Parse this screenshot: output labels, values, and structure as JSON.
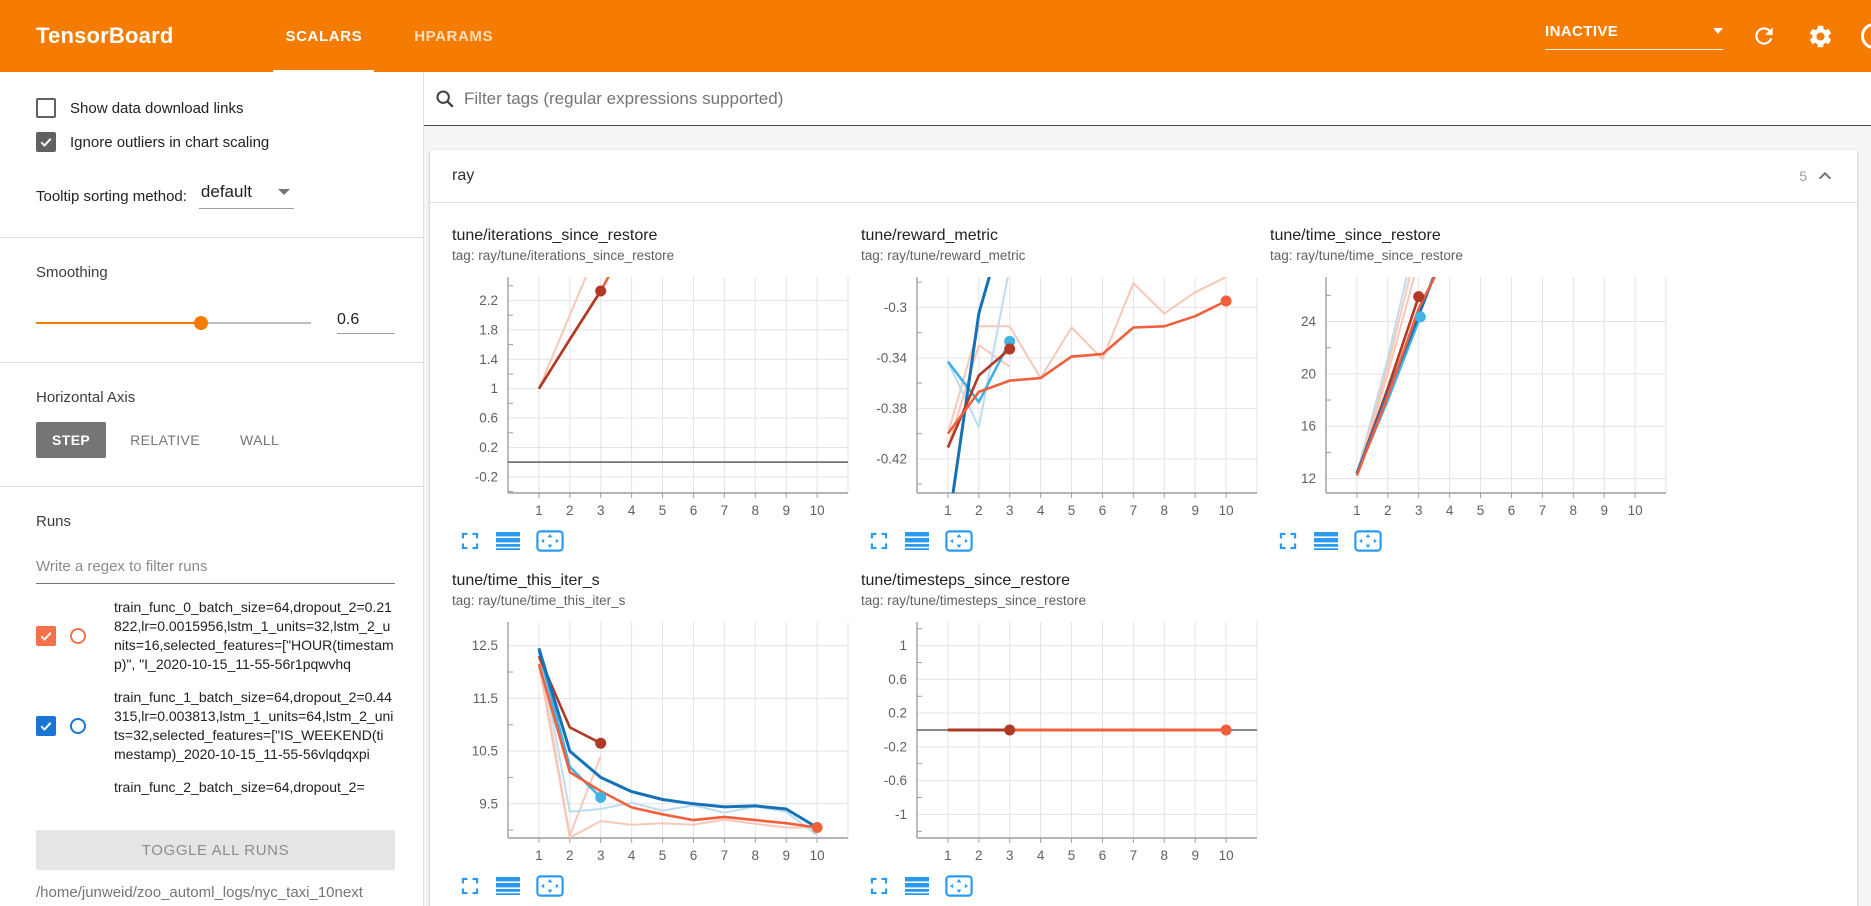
{
  "header": {
    "app_title": "TensorBoard",
    "tabs": [
      {
        "label": "SCALARS",
        "active": true
      },
      {
        "label": "HPARAMS",
        "active": false
      }
    ],
    "status_dropdown": {
      "value": "INACTIVE"
    },
    "accent_color": "#f57c00"
  },
  "sidebar": {
    "checkboxes": [
      {
        "label": "Show data download links",
        "checked": false
      },
      {
        "label": "Ignore outliers in chart scaling",
        "checked": true
      }
    ],
    "tooltip_sorting": {
      "label": "Tooltip sorting method:",
      "value": "default"
    },
    "smoothing": {
      "label": "Smoothing",
      "value": "0.6",
      "fraction": 0.6
    },
    "horizontal_axis": {
      "label": "Horizontal Axis",
      "options": [
        {
          "label": "STEP",
          "active": true
        },
        {
          "label": "RELATIVE",
          "active": false
        },
        {
          "label": "WALL",
          "active": false
        }
      ]
    },
    "runs": {
      "label": "Runs",
      "filter_placeholder": "Write a regex to filter runs",
      "items": [
        {
          "color": "#f4714a",
          "checked": true,
          "label": "train_func_0_batch_size=64,dropout_2=0.21822,lr=0.0015956,lstm_1_units=32,lstm_2_units=16,selected_features=[\"HOUR(timestamp)\", \"I_2020-10-15_11-55-56r1pqwvhq"
        },
        {
          "color": "#1976d2",
          "checked": true,
          "label": "train_func_1_batch_size=64,dropout_2=0.44315,lr=0.003813,lstm_1_units=64,lstm_2_units=32,selected_features=[\"IS_WEEKEND(timestamp)_2020-10-15_11-55-56vlqdqxpi"
        },
        {
          "color": "#b03a26",
          "checked": true,
          "label": "train_func_2_batch_size=64,dropout_2="
        }
      ],
      "toggle_all_label": "TOGGLE ALL RUNS",
      "log_path": "/home/junweid/zoo_automl_logs/nyc_taxi_10next"
    }
  },
  "main": {
    "filter_placeholder": "Filter tags (regular expressions supported)",
    "section": {
      "name": "ray",
      "count": "5"
    }
  },
  "chart_data": [
    {
      "type": "line",
      "title": "tune/iterations_since_restore",
      "tag": "tag: ray/tune/iterations_since_restore",
      "xticks": [
        1,
        2,
        3,
        4,
        5,
        6,
        7,
        8,
        9,
        10
      ],
      "xlim": [
        0,
        11
      ],
      "yticks": [
        -0.2,
        0.2,
        0.6,
        1,
        1.4,
        1.8,
        2.2
      ],
      "ylim": [
        -0.42,
        2.52
      ],
      "zero_line": true,
      "series": [
        {
          "name": "run0-raw",
          "color": "#f7c8b8",
          "width": 2,
          "points": [
            [
              1,
              1
            ],
            [
              2,
              2
            ],
            [
              3,
              3
            ]
          ]
        },
        {
          "name": "run0-smoothed",
          "color": "#f0603c",
          "width": 2.6,
          "points": [
            [
              1,
              1
            ],
            [
              2,
              1.67
            ],
            [
              3,
              2.33
            ],
            [
              4,
              3.1
            ]
          ]
        },
        {
          "name": "run2-smoothed",
          "color": "#b03a26",
          "width": 2.6,
          "points": [
            [
              1,
              1
            ],
            [
              2,
              1.67
            ],
            [
              3,
              2.33
            ]
          ],
          "dot": [
            3,
            2.33
          ]
        }
      ]
    },
    {
      "type": "line",
      "title": "tune/reward_metric",
      "tag": "tag: ray/tune/reward_metric",
      "xticks": [
        1,
        2,
        3,
        4,
        5,
        6,
        7,
        8,
        9,
        10
      ],
      "xlim": [
        0,
        11
      ],
      "yticks": [
        -0.3,
        -0.34,
        -0.38,
        -0.42
      ],
      "ylim": [
        -0.447,
        -0.276
      ],
      "zero_line": false,
      "series": [
        {
          "name": "run0-raw",
          "color": "#f7c8b8",
          "width": 2,
          "points": [
            [
              1,
              -0.4
            ],
            [
              2,
              -0.315
            ],
            [
              3,
              -0.315
            ],
            [
              4,
              -0.356
            ],
            [
              5,
              -0.316
            ],
            [
              6,
              -0.341
            ],
            [
              7,
              -0.281
            ],
            [
              8,
              -0.305
            ],
            [
              9,
              -0.288
            ],
            [
              10,
              -0.276
            ]
          ]
        },
        {
          "name": "run2-raw",
          "color": "#f7c8b8",
          "width": 2,
          "points": [
            [
              1,
              -0.411
            ],
            [
              2,
              -0.33
            ],
            [
              3,
              -0.347
            ]
          ]
        },
        {
          "name": "run1-raw",
          "color": "#bcdcf0",
          "width": 2,
          "points": [
            [
              1,
              -0.343
            ],
            [
              2,
              -0.395
            ],
            [
              3,
              -0.268
            ]
          ]
        },
        {
          "name": "run1-smoothed-light",
          "color": "#41b2e6",
          "width": 2.6,
          "points": [
            [
              1,
              -0.343
            ],
            [
              2,
              -0.375
            ],
            [
              3,
              -0.327
            ]
          ],
          "dot": [
            3,
            -0.327
          ]
        },
        {
          "name": "run1-smoothed-dark",
          "color": "#1572b6",
          "width": 3,
          "points": [
            [
              1.15,
              -0.45
            ],
            [
              2,
              -0.305
            ],
            [
              2.55,
              -0.258
            ]
          ]
        },
        {
          "name": "run2-smoothed",
          "color": "#b03a26",
          "width": 2.6,
          "points": [
            [
              1,
              -0.411
            ],
            [
              2,
              -0.354
            ],
            [
              3,
              -0.333
            ]
          ],
          "dot": [
            3,
            -0.333
          ]
        },
        {
          "name": "run0-smoothed",
          "color": "#f0603c",
          "width": 2.6,
          "points": [
            [
              1,
              -0.4
            ],
            [
              2,
              -0.367
            ],
            [
              3,
              -0.358
            ],
            [
              4,
              -0.356
            ],
            [
              5,
              -0.339
            ],
            [
              6,
              -0.337
            ],
            [
              7,
              -0.316
            ],
            [
              8,
              -0.315
            ],
            [
              9,
              -0.307
            ],
            [
              10,
              -0.295
            ]
          ],
          "dot": [
            10,
            -0.295
          ]
        }
      ]
    },
    {
      "type": "line",
      "title": "tune/time_since_restore",
      "tag": "tag: ray/tune/time_since_restore",
      "xticks": [
        1,
        2,
        3,
        4,
        5,
        6,
        7,
        8,
        9,
        10
      ],
      "xlim": [
        0,
        11
      ],
      "yticks": [
        12,
        16,
        20,
        24
      ],
      "ylim": [
        10.9,
        27.4
      ],
      "zero_line": false,
      "series": [
        {
          "name": "run1-raw",
          "color": "#bcdcf0",
          "width": 2,
          "points": [
            [
              1,
              12.4
            ],
            [
              2,
              21.2
            ],
            [
              2.65,
              27.8
            ]
          ]
        },
        {
          "name": "run0-raw",
          "color": "#f7c8b8",
          "width": 2,
          "points": [
            [
              1,
              12.2
            ],
            [
              2,
              20.6
            ],
            [
              2.75,
              27.8
            ]
          ]
        },
        {
          "name": "run2-raw",
          "color": "#f7c8b8",
          "width": 2,
          "points": [
            [
              1,
              12.2
            ],
            [
              2,
              20.0
            ],
            [
              2.9,
              27.8
            ]
          ]
        },
        {
          "name": "run1-smoothed-light",
          "color": "#41b2e6",
          "width": 2.6,
          "points": [
            [
              1,
              12.4
            ],
            [
              2,
              18.0
            ],
            [
              3.05,
              24.35
            ]
          ],
          "dot": [
            3.05,
            24.35
          ]
        },
        {
          "name": "run2-smoothed",
          "color": "#b03a26",
          "width": 2.6,
          "points": [
            [
              1,
              12.35
            ],
            [
              2,
              18.9
            ],
            [
              3,
              25.9
            ]
          ],
          "dot": [
            3,
            25.9
          ]
        },
        {
          "name": "run1-smoothed-dark",
          "color": "#1572b6",
          "width": 3,
          "points": [
            [
              1,
              12.4
            ],
            [
              2,
              18.5
            ],
            [
              3.55,
              27.8
            ]
          ]
        },
        {
          "name": "run0-smoothed",
          "color": "#f0603c",
          "width": 2.6,
          "points": [
            [
              1,
              12.25
            ],
            [
              2,
              18.3
            ],
            [
              3,
              25.0
            ],
            [
              3.6,
              27.8
            ]
          ]
        }
      ]
    },
    {
      "type": "line",
      "title": "tune/time_this_iter_s",
      "tag": "tag: ray/tune/time_this_iter_s",
      "xticks": [
        1,
        2,
        3,
        4,
        5,
        6,
        7,
        8,
        9,
        10
      ],
      "xlim": [
        0,
        11
      ],
      "yticks": [
        9.5,
        10.5,
        11.5,
        12.5
      ],
      "ylim": [
        8.85,
        12.95
      ],
      "zero_line": false,
      "series": [
        {
          "name": "run0-raw",
          "color": "#f7c8b8",
          "width": 2,
          "points": [
            [
              1,
              12.15
            ],
            [
              2,
              8.86
            ],
            [
              3,
              9.17
            ],
            [
              4,
              9.1
            ],
            [
              5,
              9.13
            ],
            [
              6,
              9.1
            ],
            [
              7,
              9.2
            ],
            [
              8,
              9.12
            ],
            [
              9,
              9.05
            ],
            [
              10,
              9.05
            ]
          ]
        },
        {
          "name": "run2-raw",
          "color": "#f7c8b8",
          "width": 2,
          "points": [
            [
              1,
              12.3
            ],
            [
              2,
              8.9
            ],
            [
              3,
              10.4
            ]
          ]
        },
        {
          "name": "run1-raw",
          "color": "#bcdcf0",
          "width": 2,
          "points": [
            [
              1,
              12.45
            ],
            [
              2,
              9.35
            ],
            [
              3,
              9.4
            ],
            [
              4,
              9.52
            ],
            [
              5,
              9.37
            ],
            [
              6,
              9.47
            ],
            [
              7,
              9.33
            ],
            [
              8,
              9.45
            ],
            [
              9,
              9.35
            ],
            [
              10,
              8.9
            ]
          ]
        },
        {
          "name": "run1-smoothed-light",
          "color": "#41b2e6",
          "width": 2.6,
          "points": [
            [
              1,
              12.4
            ],
            [
              2,
              10.2
            ],
            [
              3,
              9.62
            ]
          ],
          "dot": [
            3,
            9.62
          ]
        },
        {
          "name": "run2-smoothed",
          "color": "#b03a26",
          "width": 2.6,
          "points": [
            [
              1,
              12.3
            ],
            [
              2,
              10.95
            ],
            [
              3,
              10.65
            ]
          ],
          "dot": [
            3,
            10.65
          ]
        },
        {
          "name": "run1-smoothed-dark",
          "color": "#1572b6",
          "width": 3,
          "points": [
            [
              1,
              12.45
            ],
            [
              2,
              10.5
            ],
            [
              3,
              10.0
            ],
            [
              4,
              9.73
            ],
            [
              5,
              9.58
            ],
            [
              6,
              9.5
            ],
            [
              7,
              9.44
            ],
            [
              8,
              9.46
            ],
            [
              9,
              9.4
            ],
            [
              10,
              9.05
            ]
          ]
        },
        {
          "name": "run0-smoothed",
          "color": "#f0603c",
          "width": 2.6,
          "points": [
            [
              1,
              12.15
            ],
            [
              2,
              10.1
            ],
            [
              3,
              9.74
            ],
            [
              4,
              9.43
            ],
            [
              5,
              9.3
            ],
            [
              6,
              9.19
            ],
            [
              7,
              9.25
            ],
            [
              8,
              9.19
            ],
            [
              9,
              9.13
            ],
            [
              10,
              9.05
            ]
          ],
          "dot": [
            10,
            9.05
          ]
        }
      ]
    },
    {
      "type": "line",
      "title": "tune/timesteps_since_restore",
      "tag": "tag: ray/tune/timesteps_since_restore",
      "xticks": [
        1,
        2,
        3,
        4,
        5,
        6,
        7,
        8,
        9,
        10
      ],
      "xlim": [
        0,
        11
      ],
      "yticks": [
        1,
        0.6,
        0.2,
        -0.2,
        -0.6,
        -1
      ],
      "ylim": [
        -1.28,
        1.28
      ],
      "zero_line": true,
      "series": [
        {
          "name": "run0-smoothed",
          "color": "#f0603c",
          "width": 3,
          "points": [
            [
              1,
              0
            ],
            [
              10,
              0
            ]
          ],
          "dot": [
            10,
            0
          ]
        },
        {
          "name": "run2-smoothed",
          "color": "#b03a26",
          "width": 3,
          "points": [
            [
              1,
              0
            ],
            [
              3,
              0
            ]
          ],
          "dot": [
            3,
            0
          ]
        }
      ]
    }
  ]
}
